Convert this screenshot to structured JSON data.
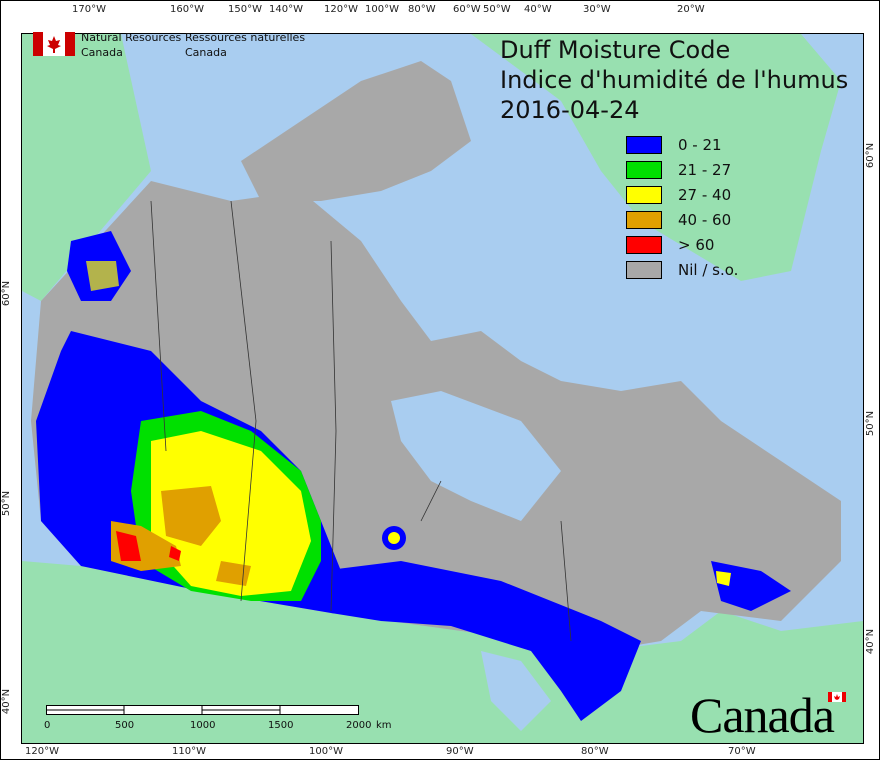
{
  "title": {
    "line1": "Duff Moisture Code",
    "line2": "Indice d'humidité de l'humus",
    "date": "2016-04-24"
  },
  "agency": {
    "en_line1": "Natural Resources",
    "en_line2": "Canada",
    "fr_line1": "Ressources naturelles",
    "fr_line2": "Canada"
  },
  "wordmark": "Canada",
  "legend": [
    {
      "label": "0 - 21",
      "color": "#0000ff"
    },
    {
      "label": "21 - 27",
      "color": "#00e000"
    },
    {
      "label": "27 - 40",
      "color": "#ffff00"
    },
    {
      "label": "40 - 60",
      "color": "#e0a000"
    },
    {
      "label": "> 60",
      "color": "#ff0000"
    },
    {
      "label": "Nil / s.o.",
      "color": "#a8a8a8"
    }
  ],
  "top_ticks": [
    "170°W",
    "160°W",
    "150°W",
    "140°W",
    "120°W",
    "100°W",
    "80°W",
    "60°W",
    "50°W",
    "40°W",
    "30°W",
    "20°W"
  ],
  "bottom_ticks": [
    "120°W",
    "110°W",
    "100°W",
    "90°W",
    "80°W",
    "70°W"
  ],
  "left_ticks": [
    "60°N",
    "50°N",
    "40°N"
  ],
  "right_ticks": [
    "60°N",
    "50°N",
    "40°N"
  ],
  "scalebar": {
    "labels": [
      "0",
      "500",
      "1000",
      "1500",
      "2000"
    ],
    "unit": "km"
  },
  "colors": {
    "ocean": "#a9cdf0",
    "land_other": "#98e0b0",
    "canada_nil": "#a8a8a8"
  }
}
